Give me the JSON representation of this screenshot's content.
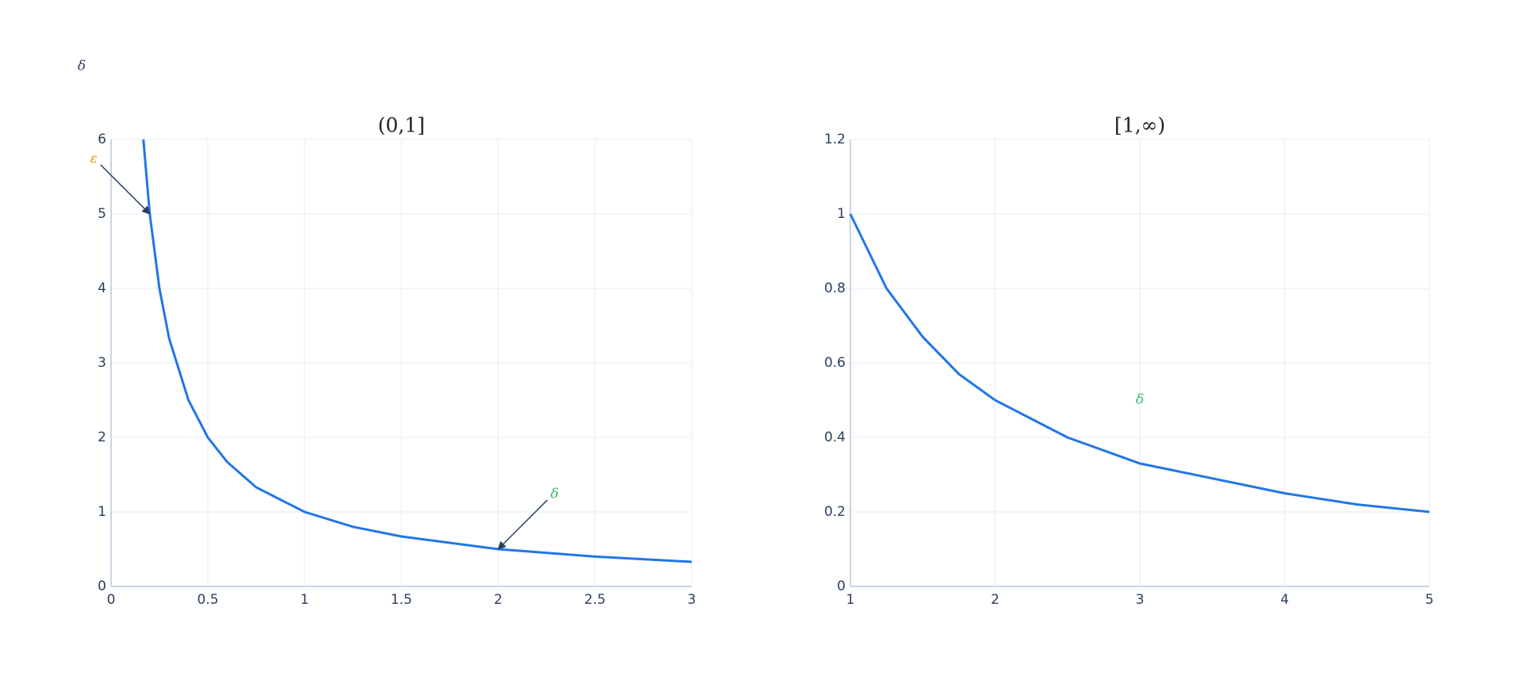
{
  "title": "δ",
  "chart_data": [
    {
      "type": "line",
      "title": "(0,1]",
      "x": [
        0.167,
        0.2,
        0.25,
        0.3,
        0.4,
        0.5,
        0.6,
        0.75,
        1,
        1.25,
        1.5,
        2,
        2.5,
        3
      ],
      "series": [
        {
          "color": "#2176e8",
          "values": [
            6,
            5,
            4,
            3.33,
            2.5,
            2,
            1.67,
            1.33,
            1,
            0.8,
            0.67,
            0.5,
            0.4,
            0.33
          ]
        }
      ],
      "xlim": [
        0,
        3
      ],
      "ylim": [
        0,
        6
      ],
      "xticks": [
        0,
        0.5,
        1,
        1.5,
        2,
        2.5,
        3
      ],
      "yticks": [
        0,
        1,
        2,
        3,
        4,
        5,
        6
      ],
      "grid": true,
      "annotations": [
        {
          "text": "ε",
          "x": 0.2,
          "y": 5,
          "color": "#f08a00",
          "arrow": true
        },
        {
          "text": "δ",
          "x": 2,
          "y": 0.5,
          "color": "#3cb371",
          "arrow": true
        }
      ]
    },
    {
      "type": "line",
      "title": "[1,∞)",
      "x": [
        1,
        1.25,
        1.5,
        1.75,
        2,
        2.5,
        3,
        3.5,
        4,
        4.5,
        5
      ],
      "series": [
        {
          "color": "#2176e8",
          "values": [
            1,
            0.8,
            0.67,
            0.57,
            0.5,
            0.4,
            0.33,
            0.29,
            0.25,
            0.22,
            0.2
          ]
        }
      ],
      "xlim": [
        1,
        5
      ],
      "ylim": [
        0,
        1.2
      ],
      "xticks": [
        1,
        2,
        3,
        4,
        5
      ],
      "yticks": [
        0,
        0.2,
        0.4,
        0.6,
        0.8,
        1,
        1.2
      ],
      "grid": true,
      "annotations": [
        {
          "text": "δ",
          "x": 3,
          "y": 0.5,
          "color": "#3cb371",
          "arrow": false
        }
      ]
    }
  ]
}
